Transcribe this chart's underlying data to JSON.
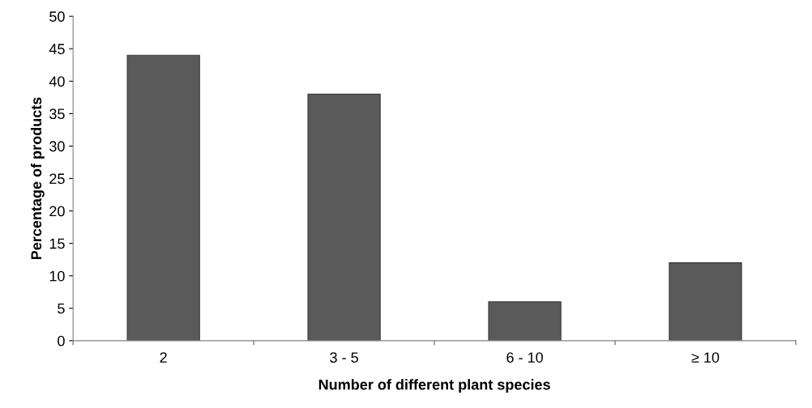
{
  "chart_data": {
    "type": "bar",
    "xlabel": "Number of different plant species",
    "ylabel": "Percentage of products",
    "categories": [
      "2",
      "3 - 5",
      "6 - 10",
      "≥ 10"
    ],
    "values": [
      44,
      38,
      6,
      12
    ],
    "color": "#5a5a5a",
    "ylim": [
      0,
      50
    ],
    "yticks": [
      0,
      5,
      10,
      15,
      20,
      25,
      30,
      35,
      40,
      45,
      50
    ],
    "grid": false,
    "legend": false
  }
}
